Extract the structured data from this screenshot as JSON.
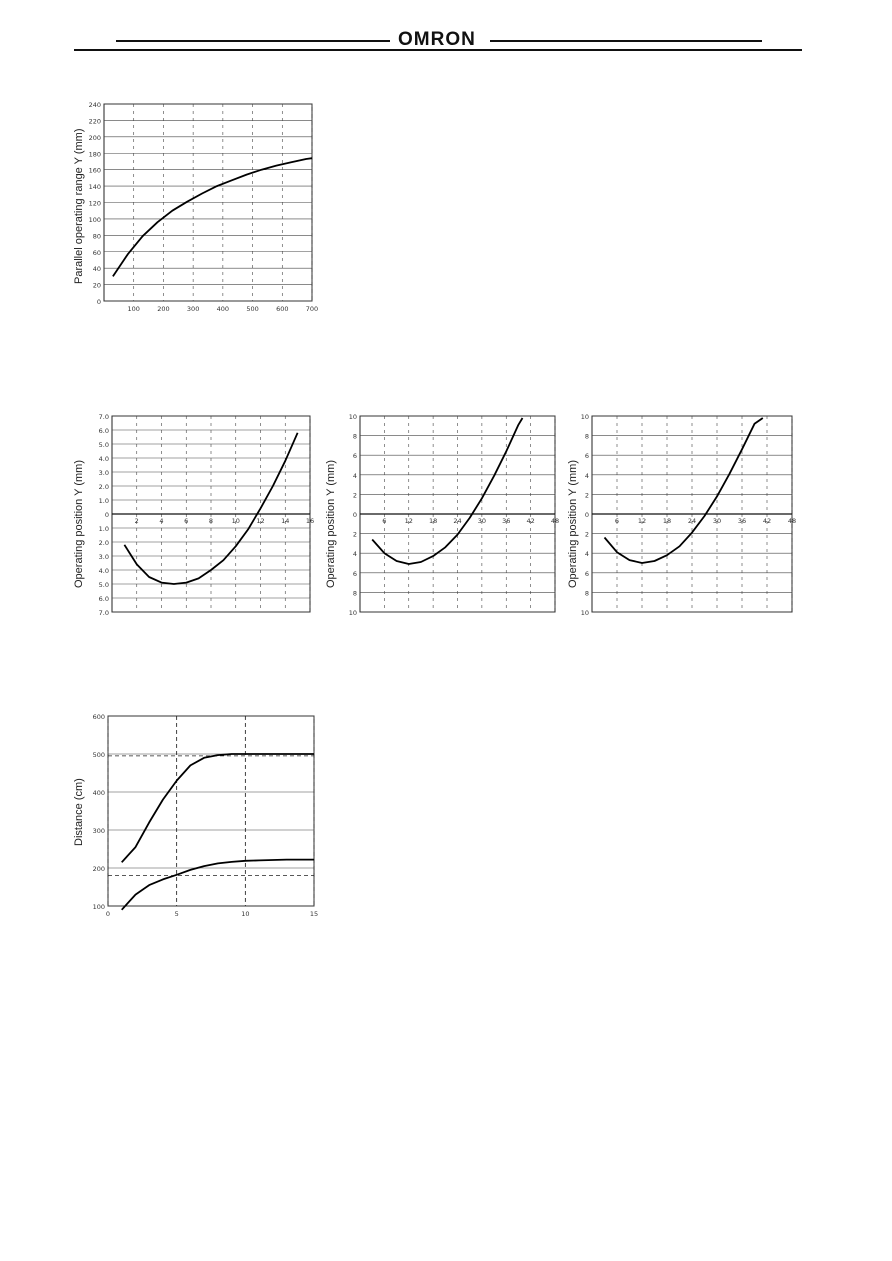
{
  "header": {
    "brand": "OMRON"
  },
  "chart_data": [
    {
      "id": "parallel",
      "type": "line",
      "title": "",
      "xlabel": "",
      "ylabel": "Parallel operating range Y  (mm)",
      "xlim": [
        0,
        700
      ],
      "ylim": [
        0,
        240
      ],
      "xticks": [
        100,
        200,
        300,
        400,
        500,
        600,
        700
      ],
      "xtick_labels": [
        "100",
        "200",
        "300",
        "400",
        "500",
        "600",
        "700"
      ],
      "yticks": [
        0,
        20,
        40,
        60,
        80,
        100,
        120,
        140,
        160,
        180,
        200,
        220,
        240
      ],
      "ytick_labels": [
        "0",
        "20",
        "40",
        "60",
        "80",
        "100",
        "120",
        "140",
        "160",
        "180",
        "200",
        "220",
        "240"
      ],
      "grid": true,
      "series": [
        {
          "x": [
            30,
            80,
            130,
            180,
            230,
            280,
            330,
            380,
            430,
            480,
            530,
            580,
            630,
            680,
            700
          ],
          "y": [
            30,
            57,
            79,
            96,
            110,
            121,
            131,
            140,
            147,
            154,
            160,
            165,
            169,
            173,
            174
          ]
        }
      ]
    },
    {
      "id": "operating-position-1",
      "type": "line",
      "title": "",
      "xlabel": "",
      "ylabel": "Operating position Y  (mm)",
      "xlim": [
        0,
        16
      ],
      "ylim": [
        -7,
        7
      ],
      "xticks": [
        2,
        4,
        6,
        8,
        10,
        12,
        14,
        16
      ],
      "xtick_labels": [
        "2",
        "4",
        "6",
        "8",
        "10",
        "12",
        "14",
        "16"
      ],
      "yticks": [
        7,
        6,
        5,
        4,
        3,
        2,
        1,
        0,
        -1,
        -2,
        -3,
        -4,
        -5,
        -6,
        -7
      ],
      "ytick_labels": [
        "7.0",
        "6.0",
        "5.0",
        "4.0",
        "3.0",
        "2.0",
        "1.0",
        "0",
        "1.0",
        "2.0",
        "3.0",
        "4.0",
        "5.0",
        "6.0",
        "7.0"
      ],
      "grid": true,
      "series": [
        {
          "x": [
            1,
            2,
            3,
            4,
            5,
            6,
            7,
            8,
            9,
            10,
            11,
            12,
            13,
            14,
            15
          ],
          "y": [
            -2.2,
            -3.6,
            -4.5,
            -4.9,
            -5.0,
            -4.9,
            -4.6,
            -4.0,
            -3.3,
            -2.3,
            -1.1,
            0.4,
            2.0,
            3.8,
            5.8
          ]
        }
      ]
    },
    {
      "id": "operating-position-2",
      "type": "line",
      "title": "",
      "xlabel": "",
      "ylabel": "Operating position Y  (mm)",
      "xlim": [
        0,
        48
      ],
      "ylim": [
        -10,
        10
      ],
      "xticks": [
        6,
        12,
        18,
        24,
        30,
        36,
        42,
        48
      ],
      "xtick_labels": [
        "6",
        "12",
        "18",
        "24",
        "30",
        "36",
        "42",
        "48"
      ],
      "yticks": [
        10,
        8,
        6,
        4,
        2,
        0,
        -2,
        -4,
        -6,
        -8,
        -10
      ],
      "ytick_labels": [
        "10",
        "8",
        "6",
        "4",
        "2",
        "0",
        "2",
        "4",
        "6",
        "8",
        "10"
      ],
      "grid": true,
      "series": [
        {
          "x": [
            3,
            6,
            9,
            12,
            15,
            18,
            21,
            24,
            27,
            30,
            33,
            36,
            39,
            40
          ],
          "y": [
            -2.6,
            -4.0,
            -4.8,
            -5.1,
            -4.9,
            -4.3,
            -3.4,
            -2.1,
            -0.4,
            1.6,
            3.9,
            6.4,
            9.1,
            9.8
          ]
        }
      ]
    },
    {
      "id": "operating-position-3",
      "type": "line",
      "title": "",
      "xlabel": "",
      "ylabel": "Operating position Y  (mm)",
      "xlim": [
        0,
        48
      ],
      "ylim": [
        -10,
        10
      ],
      "xticks": [
        6,
        12,
        18,
        24,
        30,
        36,
        42,
        48
      ],
      "xtick_labels": [
        "6",
        "12",
        "18",
        "24",
        "30",
        "36",
        "42",
        "48"
      ],
      "yticks": [
        10,
        8,
        6,
        4,
        2,
        0,
        -2,
        -4,
        -6,
        -8,
        -10
      ],
      "ytick_labels": [
        "10",
        "8",
        "6",
        "4",
        "2",
        "0",
        "2",
        "4",
        "6",
        "8",
        "10"
      ],
      "grid": true,
      "series": [
        {
          "x": [
            3,
            6,
            9,
            12,
            15,
            18,
            21,
            24,
            27,
            30,
            33,
            36,
            39,
            41
          ],
          "y": [
            -2.4,
            -3.9,
            -4.7,
            -5.0,
            -4.8,
            -4.2,
            -3.3,
            -1.9,
            -0.2,
            1.8,
            4.1,
            6.6,
            9.2,
            9.8
          ]
        }
      ]
    },
    {
      "id": "distance",
      "type": "line",
      "title": "",
      "xlabel": "",
      "ylabel": "Distance  (cm)",
      "xlim": [
        0,
        15
      ],
      "ylim": [
        100,
        600
      ],
      "xticks": [
        0,
        5,
        10,
        15
      ],
      "xtick_labels": [
        "0",
        "5",
        "10",
        "15"
      ],
      "yticks": [
        100,
        200,
        300,
        400,
        500,
        600
      ],
      "ytick_labels": [
        "100",
        "200",
        "300",
        "400",
        "500",
        "600"
      ],
      "grid": true,
      "series": [
        {
          "x": [
            1,
            2,
            3,
            4,
            5,
            6,
            7,
            8,
            9,
            10,
            11,
            12,
            13,
            14,
            15
          ],
          "y": [
            215,
            255,
            320,
            380,
            430,
            470,
            490,
            497,
            500,
            500,
            500,
            500,
            500,
            500,
            500
          ]
        },
        {
          "x": [
            1,
            2,
            3,
            4,
            5,
            6,
            7,
            8,
            9,
            10,
            11,
            12,
            13,
            14,
            15
          ],
          "y": [
            90,
            130,
            155,
            170,
            182,
            195,
            205,
            212,
            216,
            219,
            220,
            221,
            222,
            222,
            222
          ]
        }
      ],
      "reference_lines": [
        {
          "axis": "y",
          "value": 495
        },
        {
          "axis": "y",
          "value": 180
        },
        {
          "axis": "x",
          "value": 5
        },
        {
          "axis": "x",
          "value": 10
        }
      ]
    }
  ]
}
